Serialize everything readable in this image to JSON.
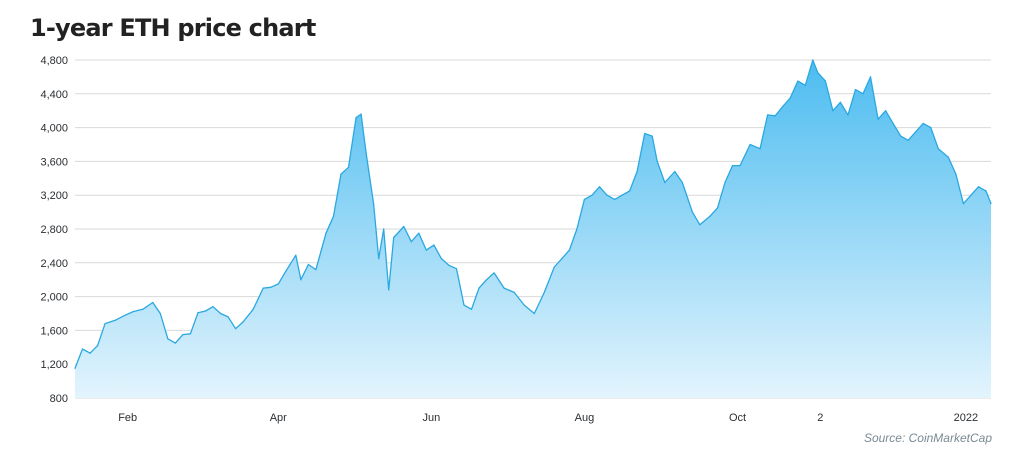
{
  "chart_data": {
    "type": "area",
    "title": "1-year ETH price chart",
    "source": "Source: CoinMarketCap",
    "xlabel": "",
    "ylabel": "",
    "ylim": [
      800,
      4800
    ],
    "yticks": [
      800,
      1200,
      1600,
      2000,
      2400,
      2800,
      3200,
      3600,
      4000,
      4400,
      4800
    ],
    "ytick_labels": [
      "800",
      "1,200",
      "1,600",
      "2,000",
      "2,400",
      "2,800",
      "3,200",
      "3,600",
      "4,000",
      "4,400",
      "4,800"
    ],
    "xlim": [
      "2021-01-18",
      "2022-01-18"
    ],
    "xticks": [
      {
        "date": "2021-02-08",
        "label": "Feb"
      },
      {
        "date": "2021-04-09",
        "label": "Apr"
      },
      {
        "date": "2021-06-09",
        "label": "Jun"
      },
      {
        "date": "2021-08-09",
        "label": "Aug"
      },
      {
        "date": "2021-10-09",
        "label": "Oct"
      },
      {
        "date": "2021-11-11",
        "label": "2"
      },
      {
        "date": "2022-01-08",
        "label": "2022"
      }
    ],
    "grid": true,
    "colors": {
      "line": "#2aa8e0",
      "fill_top": "#4cbcf0",
      "fill_bottom": "#e3f4fd",
      "grid": "#d9d9d9"
    },
    "series": [
      {
        "x": [
          "2021-01-18",
          "2021-01-21",
          "2021-01-24",
          "2021-01-27",
          "2021-01-30",
          "2021-02-03",
          "2021-02-07",
          "2021-02-10",
          "2021-02-14",
          "2021-02-18",
          "2021-02-21",
          "2021-02-24",
          "2021-02-27",
          "2021-03-02",
          "2021-03-05",
          "2021-03-08",
          "2021-03-11",
          "2021-03-14",
          "2021-03-17",
          "2021-03-20",
          "2021-03-23",
          "2021-03-26",
          "2021-03-30",
          "2021-04-03",
          "2021-04-06",
          "2021-04-09",
          "2021-04-12",
          "2021-04-16",
          "2021-04-18",
          "2021-04-21",
          "2021-04-24",
          "2021-04-28",
          "2021-05-01",
          "2021-05-04",
          "2021-05-07",
          "2021-05-10",
          "2021-05-12",
          "2021-05-14",
          "2021-05-17",
          "2021-05-19",
          "2021-05-21",
          "2021-05-23",
          "2021-05-25",
          "2021-05-29",
          "2021-06-01",
          "2021-06-04",
          "2021-06-07",
          "2021-06-10",
          "2021-06-13",
          "2021-06-16",
          "2021-06-19",
          "2021-06-22",
          "2021-06-25",
          "2021-06-28",
          "2021-07-01",
          "2021-07-04",
          "2021-07-08",
          "2021-07-12",
          "2021-07-16",
          "2021-07-20",
          "2021-07-24",
          "2021-07-28",
          "2021-07-31",
          "2021-08-03",
          "2021-08-06",
          "2021-08-09",
          "2021-08-12",
          "2021-08-15",
          "2021-08-18",
          "2021-08-21",
          "2021-08-24",
          "2021-08-27",
          "2021-08-30",
          "2021-09-02",
          "2021-09-05",
          "2021-09-07",
          "2021-09-10",
          "2021-09-14",
          "2021-09-17",
          "2021-09-21",
          "2021-09-24",
          "2021-09-28",
          "2021-10-01",
          "2021-10-04",
          "2021-10-07",
          "2021-10-10",
          "2021-10-14",
          "2021-10-18",
          "2021-10-21",
          "2021-10-24",
          "2021-10-27",
          "2021-10-30",
          "2021-11-02",
          "2021-11-05",
          "2021-11-08",
          "2021-11-10",
          "2021-11-13",
          "2021-11-16",
          "2021-11-19",
          "2021-11-22",
          "2021-11-25",
          "2021-11-28",
          "2021-12-01",
          "2021-12-04",
          "2021-12-07",
          "2021-12-10",
          "2021-12-13",
          "2021-12-16",
          "2021-12-19",
          "2021-12-22",
          "2021-12-25",
          "2021-12-28",
          "2022-01-01",
          "2022-01-04",
          "2022-01-07",
          "2022-01-10",
          "2022-01-13",
          "2022-01-16",
          "2022-01-18"
        ],
        "values": [
          1150,
          1380,
          1330,
          1420,
          1680,
          1720,
          1780,
          1820,
          1850,
          1930,
          1800,
          1500,
          1450,
          1550,
          1560,
          1810,
          1830,
          1880,
          1800,
          1760,
          1620,
          1700,
          1850,
          2100,
          2110,
          2150,
          2300,
          2490,
          2200,
          2380,
          2320,
          2750,
          2950,
          3450,
          3530,
          4120,
          4160,
          3700,
          3100,
          2450,
          2800,
          2080,
          2700,
          2830,
          2650,
          2750,
          2550,
          2610,
          2450,
          2370,
          2330,
          1900,
          1850,
          2100,
          2200,
          2280,
          2100,
          2050,
          1900,
          1800,
          2050,
          2350,
          2450,
          2550,
          2800,
          3150,
          3200,
          3300,
          3200,
          3150,
          3200,
          3250,
          3480,
          3930,
          3900,
          3600,
          3350,
          3480,
          3350,
          3000,
          2850,
          2950,
          3050,
          3350,
          3550,
          3550,
          3800,
          3750,
          4150,
          4140,
          4250,
          4350,
          4550,
          4500,
          4800,
          4650,
          4550,
          4200,
          4300,
          4150,
          4450,
          4400,
          4600,
          4100,
          4200,
          4050,
          3900,
          3850,
          3950,
          4050,
          4000,
          3750,
          3650,
          3450,
          3100,
          3200,
          3300,
          3250,
          3100
        ]
      }
    ]
  }
}
